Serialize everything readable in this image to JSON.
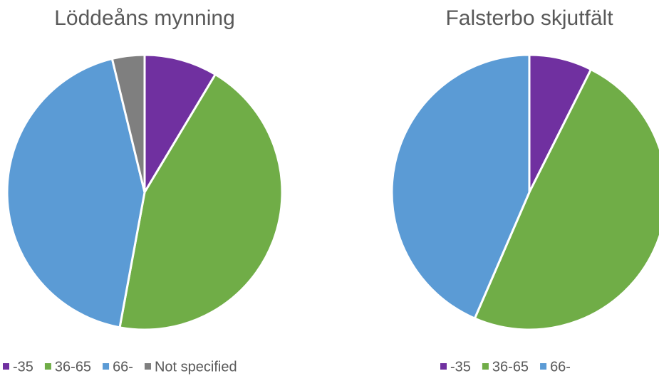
{
  "chart_data": [
    {
      "type": "pie",
      "title": "Löddeåns mynning",
      "categories": [
        "-35",
        "36-65",
        "66-",
        "Not specified"
      ],
      "values": [
        8.6,
        44.3,
        43.3,
        3.8
      ],
      "colors": [
        "#7030a0",
        "#70ad47",
        "#5b9bd5",
        "#7f7f7f"
      ],
      "legend": "bottom"
    },
    {
      "type": "pie",
      "title": "Falsterbo skjutfält",
      "categories": [
        "-35",
        "36-65",
        "66-"
      ],
      "values": [
        7.4,
        49.1,
        43.5
      ],
      "colors": [
        "#7030a0",
        "#70ad47",
        "#5b9bd5"
      ],
      "legend": "bottom"
    }
  ]
}
